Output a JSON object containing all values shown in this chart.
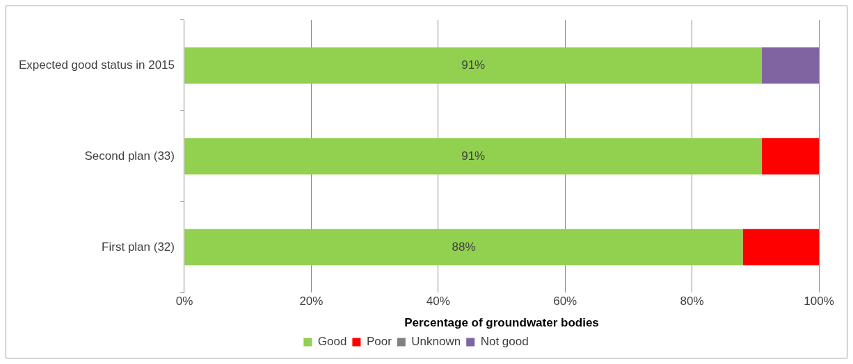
{
  "chart_data": {
    "type": "bar",
    "orientation": "horizontal",
    "stacked": true,
    "categories": [
      "Expected good status in 2015",
      "Second plan (33)",
      "First plan (32)"
    ],
    "series": [
      {
        "name": "Good",
        "color": "#92d050",
        "values": [
          91,
          91,
          88
        ],
        "value_labels": [
          "91%",
          "91%",
          "88%"
        ]
      },
      {
        "name": "Poor",
        "color": "#ff0000",
        "values": [
          0,
          9,
          12
        ]
      },
      {
        "name": "Unknown",
        "color": "#808080",
        "values": [
          0,
          0,
          0
        ]
      },
      {
        "name": "Not good",
        "color": "#8064a2",
        "values": [
          9,
          0,
          0
        ]
      }
    ],
    "xlabel": "Percentage of groundwater bodies",
    "xlim": [
      0,
      100
    ],
    "xticks": [
      {
        "value": 0,
        "label": "0%"
      },
      {
        "value": 20,
        "label": "20%"
      },
      {
        "value": 40,
        "label": "40%"
      },
      {
        "value": 60,
        "label": "60%"
      },
      {
        "value": 80,
        "label": "80%"
      },
      {
        "value": 100,
        "label": "100%"
      }
    ],
    "grid": "x",
    "legend": "bottom"
  }
}
